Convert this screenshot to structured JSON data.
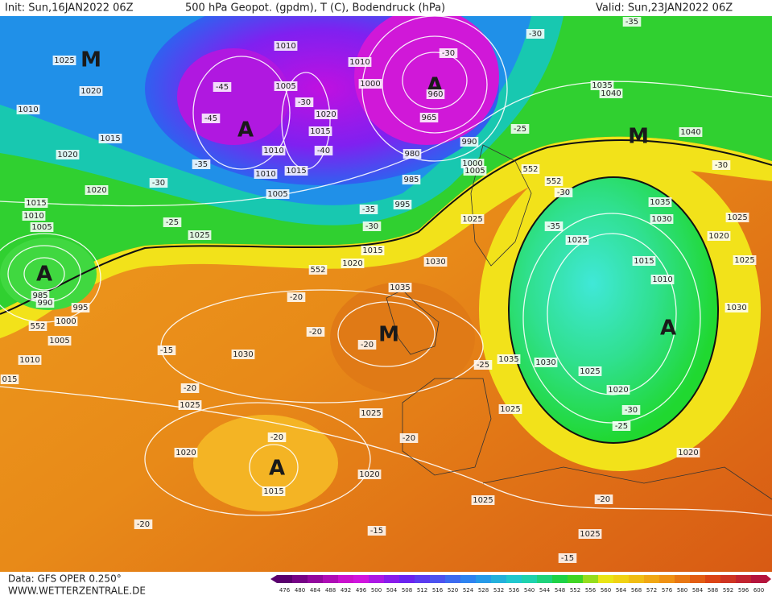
{
  "header": {
    "init": "Init: Sun,16JAN2022 06Z",
    "title": "500 hPa Geopot. (gpdm), T (C), Bodendruck (hPa)",
    "valid": "Valid: Sun,23JAN2022 06Z"
  },
  "footer": {
    "data": "Data: GFS OPER 0.250°",
    "site": "WWW.WETTERZENTRALE.DE"
  },
  "colorbar": {
    "labels": [
      476,
      480,
      484,
      488,
      492,
      496,
      500,
      504,
      508,
      512,
      516,
      520,
      524,
      528,
      532,
      536,
      540,
      544,
      548,
      552,
      556,
      560,
      564,
      568,
      572,
      576,
      580,
      584,
      588,
      592,
      596,
      600
    ]
  },
  "map_labels": [
    "M",
    "1025",
    "1020",
    "1010",
    "1015",
    "1020",
    "1020",
    "1015",
    "1010",
    "1005",
    "1025",
    "-25",
    "-30",
    "-35",
    "-45",
    "-45",
    "A",
    "1010",
    "1005",
    "-30",
    "1020",
    "1015",
    "1010",
    "-40",
    "1015",
    "1010",
    "1005",
    "1010",
    "1000",
    "A",
    "-30",
    "960",
    "965",
    "980",
    "985",
    "995",
    "-35",
    "-30",
    "1015",
    "1020",
    "990",
    "1000",
    "1005",
    "1025",
    "1030",
    "552",
    "552",
    "552",
    "-25",
    "-30",
    "-35",
    "1035",
    "1040",
    "M",
    "1040",
    "-30",
    "1035",
    "1030",
    "1025",
    "1020",
    "1025",
    "1015",
    "1010",
    "-30",
    "-35",
    "1025",
    "A",
    "1030",
    "1035",
    "1030",
    "1025",
    "1020",
    "-30",
    "-25",
    "1025",
    "1020",
    "-20",
    "1025",
    "-15",
    "-25",
    "1035",
    "M",
    "-20",
    "-20",
    "-20",
    "1030",
    "-15",
    "-20",
    "1025",
    "1025",
    "-20",
    "-20",
    "A",
    "1015",
    "1020",
    "1020",
    "1025",
    "-15",
    "-20",
    "A",
    "985",
    "990",
    "995",
    "1000",
    "552",
    "1005",
    "1010",
    "015"
  ]
}
